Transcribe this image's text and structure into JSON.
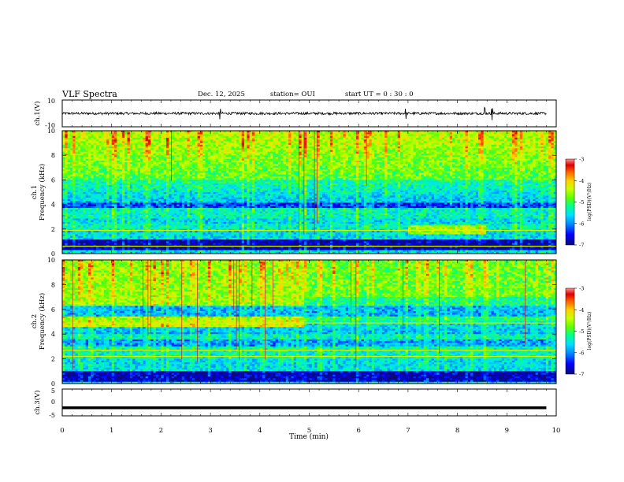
{
  "header": {
    "title": "VLF Spectra",
    "date": "Dec. 12, 2025",
    "station": "station= OUI",
    "start": "start  UT =   0  : 30 : 0"
  },
  "colors": {
    "scale": [
      "#0a0a78",
      "#0000ff",
      "#0090ff",
      "#00e0ff",
      "#00ff90",
      "#60ff00",
      "#c8ff00",
      "#ffd000",
      "#ff6000",
      "#e00000",
      "#ff9090",
      "#ffffff"
    ]
  },
  "chart_data": [
    {
      "type": "line",
      "panel": "ch1-waveform",
      "ylabel": "ch.1(V)",
      "ylim": [
        -10,
        10
      ],
      "yticks": [
        "10",
        "-10"
      ],
      "xlim": [
        0,
        10
      ],
      "series": [
        {
          "level": 0,
          "noise_amplitude": 0.6,
          "spikes_at_min": [
            3.2,
            6.95,
            8.55,
            8.7
          ]
        }
      ]
    },
    {
      "type": "heatmap",
      "panel": "ch1-spectrogram",
      "ylabel": "ch.1\nFrequency (kHz)",
      "ylim": [
        0,
        10
      ],
      "yticks": [
        "0",
        "2",
        "4",
        "6",
        "8",
        "10"
      ],
      "xlim": [
        0,
        10
      ],
      "colorbar": {
        "label": "log(PSD)(V²/Hz)",
        "range": [
          -7,
          -3
        ],
        "ticks": [
          "-3",
          "-4",
          "-5",
          "-6",
          "-7"
        ]
      },
      "features": {
        "bands_khz": [
          [
            0.3,
            1.2,
            -6.8
          ],
          [
            2.4,
            2.9,
            -5.6
          ],
          [
            3.7,
            4.1,
            -6.3
          ]
        ],
        "strong_line_khz": [
          0.6,
          1.9
        ],
        "event_interval_min": [
          7.0,
          8.6
        ],
        "upper_emission_khz": [
          6.0,
          10.0
        ]
      }
    },
    {
      "type": "heatmap",
      "panel": "ch2-spectrogram",
      "ylabel": "ch.2\nFrequency (kHz)",
      "ylim": [
        0,
        10
      ],
      "yticks": [
        "0",
        "2",
        "4",
        "6",
        "8",
        "10"
      ],
      "xlim": [
        0,
        10
      ],
      "colorbar": {
        "label": "log(PSD)(V²/Hz)",
        "range": [
          -7,
          -3
        ],
        "ticks": [
          "-3",
          "-4",
          "-5",
          "-6",
          "-7"
        ]
      },
      "features": {
        "bands_khz": [
          [
            0.2,
            1.0,
            -6.8
          ],
          [
            3.0,
            3.6,
            -5.9
          ],
          [
            5.5,
            6.3,
            -5.8
          ]
        ],
        "strong_line_khz": [
          2.2,
          2.7,
          4.9
        ],
        "transition_min": 4.9,
        "upper_emission_khz": [
          6.5,
          10.0
        ]
      }
    },
    {
      "type": "line",
      "panel": "ch3-waveform",
      "ylabel": "ch.3(V)",
      "ylim": [
        -5,
        5
      ],
      "yticks": [
        "5",
        "0",
        "-5"
      ],
      "xlabel": "Time (min)",
      "xlim": [
        0,
        10
      ],
      "xticks": [
        "0",
        "1",
        "2",
        "3",
        "4",
        "5",
        "6",
        "7",
        "8",
        "9",
        "10"
      ],
      "series": [
        {
          "level": -2.0,
          "noise_amplitude": 0.0
        }
      ]
    }
  ]
}
